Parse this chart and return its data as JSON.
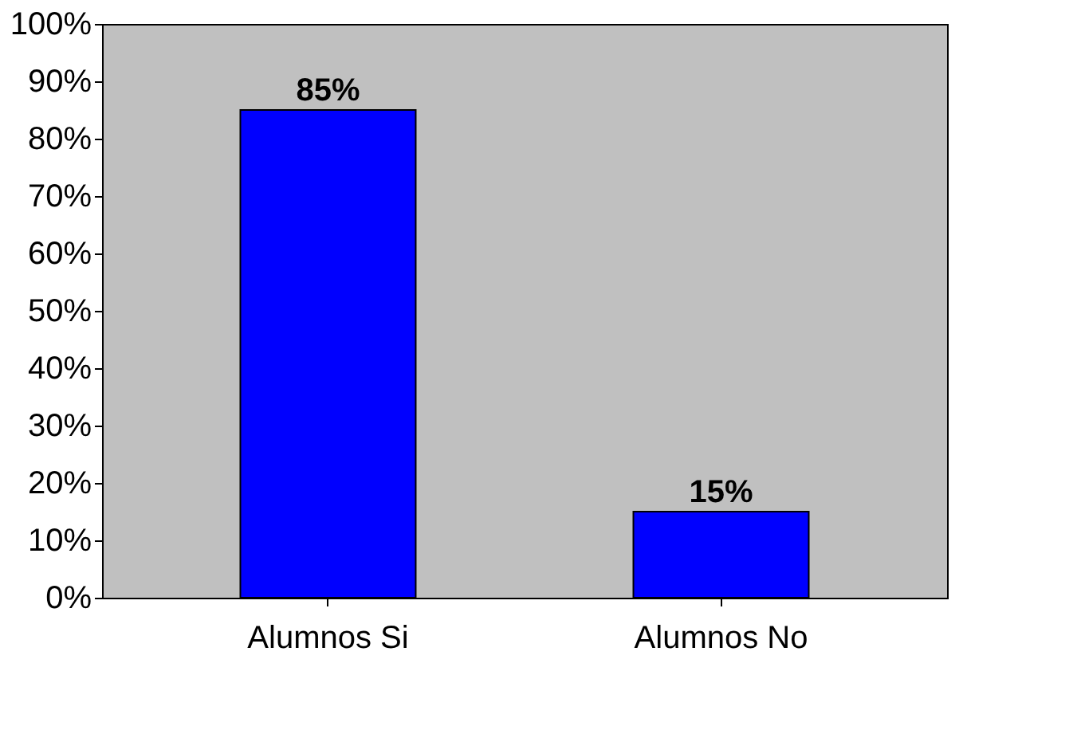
{
  "chart_data": {
    "type": "bar",
    "categories": [
      "Alumnos Si",
      "Alumnos No"
    ],
    "values": [
      85,
      15
    ],
    "color": "#0000ff",
    "value_labels": [
      "85%",
      "15%"
    ],
    "ylim": [
      0,
      100
    ],
    "yticks": [
      {
        "value": 0,
        "label": "0%"
      },
      {
        "value": 10,
        "label": "10%"
      },
      {
        "value": 20,
        "label": "20%"
      },
      {
        "value": 30,
        "label": "30%"
      },
      {
        "value": 40,
        "label": "40%"
      },
      {
        "value": 50,
        "label": "50%"
      },
      {
        "value": 60,
        "label": "60%"
      },
      {
        "value": 70,
        "label": "70%"
      },
      {
        "value": 80,
        "label": "80%"
      },
      {
        "value": 90,
        "label": "90%"
      },
      {
        "value": 100,
        "label": "100%"
      }
    ],
    "grid": false
  }
}
